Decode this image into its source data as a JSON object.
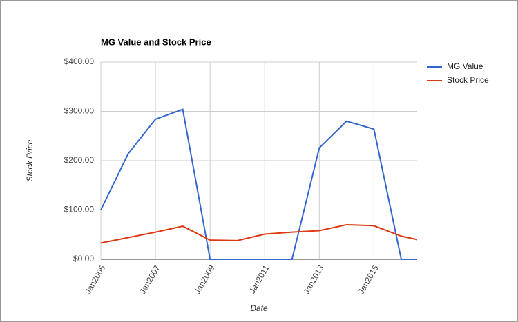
{
  "chart_data": {
    "type": "line",
    "title": "MG Value and Stock Price",
    "x_label": "Date",
    "y_label": "Stock Price",
    "x": [
      "2005-01",
      "2006-01",
      "2007-01",
      "2008-01",
      "2009-01",
      "2010-01",
      "2011-01",
      "2012-01",
      "2013-01",
      "2014-01",
      "2015-01",
      "2016-01",
      "2016-08"
    ],
    "series": [
      {
        "name": "MG Value",
        "color": "#3366cc",
        "values": [
          100,
          214,
          284,
          304,
          0,
          0,
          0,
          0,
          226,
          280,
          264,
          0,
          0
        ]
      },
      {
        "name": "Stock Price",
        "color": "#dc3912",
        "values": [
          33,
          44,
          55,
          67,
          39,
          38,
          51,
          55,
          58,
          70,
          68,
          47,
          40
        ]
      }
    ],
    "xlim": [
      "2005-01",
      "2016-08"
    ],
    "xticks": [
      {
        "value": "2005-01",
        "label": "Jan2005"
      },
      {
        "value": "2007-01",
        "label": "Jan2007"
      },
      {
        "value": "2009-01",
        "label": "Jan2009"
      },
      {
        "value": "2011-01",
        "label": "Jan2011"
      },
      {
        "value": "2013-01",
        "label": "Jan2013"
      },
      {
        "value": "2015-01",
        "label": "Jan2015"
      }
    ],
    "ylim": [
      0,
      400
    ],
    "yticks": [
      {
        "value": 0,
        "label": "$0.00"
      },
      {
        "value": 100,
        "label": "$100.00"
      },
      {
        "value": 200,
        "label": "$200.00"
      },
      {
        "value": 300,
        "label": "$300.00"
      },
      {
        "value": 400,
        "label": "$400.00"
      }
    ],
    "grid": true,
    "legend": "right"
  }
}
